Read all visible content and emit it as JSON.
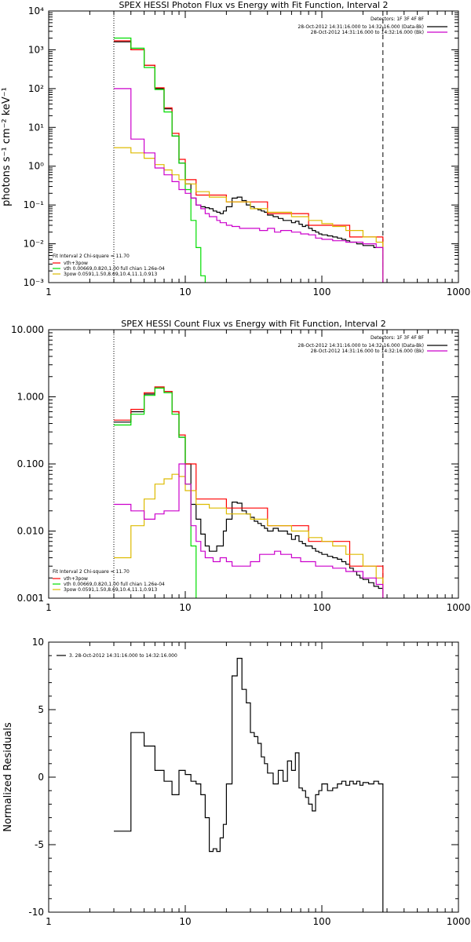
{
  "chart_data": [
    {
      "type": "line",
      "title": "SPEX HESSI Photon Flux vs Energy with Fit Function, Interval 2",
      "ylabel": "photons s⁻¹ cm⁻² keV⁻¹",
      "xlabel": "",
      "xscale": "log",
      "yscale": "log",
      "xlim": [
        1,
        1000
      ],
      "ylim": [
        0.001,
        10000
      ],
      "x_ticks": [
        "1",
        "10",
        "100",
        "1000"
      ],
      "y_ticks": [
        "10⁻³",
        "10⁻²",
        "10⁻¹",
        "10⁰",
        "10¹",
        "10²",
        "10³",
        "10⁴"
      ],
      "y_tick_values": [
        0.001,
        0.01,
        0.1,
        1,
        10,
        100,
        1000,
        10000
      ],
      "vlines": [
        {
          "x": 3,
          "style": "dotted",
          "color": "#000000"
        },
        {
          "x": 280,
          "style": "dashed",
          "color": "#000000"
        }
      ],
      "legend_top_right": {
        "header": "Detectors: 1F 3F 4F 8F",
        "entries": [
          {
            "label": "28-Oct-2012 14:31:16.000 to 14:32:16.000 (Data-Bk)",
            "color": "#000000"
          },
          {
            "label": "28-Oct-2012 14:31:16.000 to 14:32:16.000 (Bk)",
            "color": "#cc00cc"
          }
        ]
      },
      "legend_bottom_left": {
        "header": "Fit Interval 2   Chi-square = 11.70",
        "entries": [
          {
            "label": "vth+3pow",
            "color": "#ff0000"
          },
          {
            "label": "vth 0.00669,0.820,1.00  full chian 1.26e-04",
            "color": "#00dd00"
          },
          {
            "label": "3pow 0.0591,1.50,8.69,10.4,11.1,0.913",
            "color": "#ddbb00"
          }
        ]
      },
      "series": [
        {
          "color": "#000000",
          "x": [
            3,
            4,
            5,
            6,
            7,
            8,
            9,
            10,
            11,
            12,
            13,
            14,
            15,
            16,
            17,
            18,
            19,
            20,
            22,
            24,
            26,
            28,
            30,
            32,
            34,
            36,
            38,
            40,
            44,
            48,
            52,
            56,
            60,
            64,
            68,
            72,
            76,
            80,
            85,
            90,
            95,
            100,
            110,
            120,
            130,
            140,
            150,
            160,
            170,
            180,
            190,
            200,
            220,
            240,
            260,
            280
          ],
          "y": [
            1600,
            1000,
            400,
            100,
            30,
            6,
            1.2,
            0.35,
            0.15,
            0.1,
            0.09,
            0.085,
            0.08,
            0.07,
            0.065,
            0.06,
            0.07,
            0.09,
            0.15,
            0.16,
            0.13,
            0.1,
            0.09,
            0.08,
            0.075,
            0.07,
            0.065,
            0.055,
            0.05,
            0.045,
            0.04,
            0.04,
            0.035,
            0.038,
            0.032,
            0.028,
            0.03,
            0.025,
            0.022,
            0.02,
            0.018,
            0.017,
            0.016,
            0.015,
            0.014,
            0.013,
            0.012,
            0.011,
            0.011,
            0.01,
            0.01,
            0.009,
            0.009,
            0.008,
            0.008,
            0.001
          ]
        },
        {
          "color": "#ff0000",
          "x": [
            3,
            4,
            5,
            6,
            7,
            8,
            9,
            10,
            12,
            20,
            40,
            80,
            160,
            280
          ],
          "y": [
            1700,
            1000,
            400,
            105,
            32,
            7,
            1.5,
            0.45,
            0.18,
            0.12,
            0.06,
            0.03,
            0.015,
            0.008
          ]
        },
        {
          "color": "#00dd00",
          "x": [
            3,
            4,
            5,
            6,
            7,
            8,
            9,
            10,
            11,
            12,
            13,
            14
          ],
          "y": [
            2000,
            1100,
            350,
            95,
            25,
            6,
            1.2,
            0.25,
            0.04,
            0.008,
            0.0015,
            0.001
          ]
        },
        {
          "color": "#ddbb00",
          "x": [
            3,
            4,
            5,
            6,
            7,
            8,
            9,
            10,
            12,
            15,
            20,
            30,
            40,
            60,
            80,
            100,
            120,
            150,
            200,
            250,
            280
          ],
          "y": [
            3,
            2.2,
            1.6,
            1.1,
            0.8,
            0.6,
            0.45,
            0.35,
            0.22,
            0.16,
            0.12,
            0.08,
            0.065,
            0.05,
            0.04,
            0.033,
            0.028,
            0.022,
            0.015,
            0.011,
            0.001
          ]
        },
        {
          "color": "#cc00cc",
          "x": [
            3,
            4,
            5,
            6,
            7,
            8,
            9,
            10,
            11,
            12,
            13,
            14,
            15,
            16,
            17,
            18,
            20,
            22,
            25,
            30,
            35,
            40,
            45,
            50,
            60,
            70,
            80,
            90,
            100,
            120,
            150,
            200,
            250,
            280
          ],
          "y": [
            100,
            5,
            2.2,
            0.9,
            0.6,
            0.4,
            0.25,
            0.2,
            0.15,
            0.1,
            0.08,
            0.06,
            0.05,
            0.05,
            0.04,
            0.035,
            0.03,
            0.028,
            0.025,
            0.025,
            0.022,
            0.025,
            0.02,
            0.022,
            0.02,
            0.018,
            0.017,
            0.014,
            0.013,
            0.012,
            0.011,
            0.01,
            0.008,
            0.001
          ]
        }
      ]
    },
    {
      "type": "line",
      "title": "SPEX HESSI Count Flux vs Energy with Fit Function, Interval 2",
      "xlabel": "",
      "ylabel": "",
      "xscale": "log",
      "yscale": "log",
      "xlim": [
        1,
        1000
      ],
      "ylim": [
        0.001,
        10
      ],
      "x_ticks": [
        "1",
        "10",
        "100",
        "1000"
      ],
      "y_ticks": [
        "0.001",
        "0.010",
        "0.100",
        "1.000",
        "10.000"
      ],
      "y_tick_values": [
        0.001,
        0.01,
        0.1,
        1,
        10
      ],
      "vlines": [
        {
          "x": 3,
          "style": "dotted",
          "color": "#000000"
        },
        {
          "x": 280,
          "style": "dashed",
          "color": "#000000"
        }
      ],
      "legend_top_right": {
        "header": "Detectors: 1F 3F 4F 8F",
        "entries": [
          {
            "label": "28-Oct-2012 14:31:16.000 to 14:32:16.000 (Data-Bk)",
            "color": "#000000"
          },
          {
            "label": "28-Oct-2012 14:31:16.000 to 14:32:16.000 (Bk)",
            "color": "#cc00cc"
          }
        ]
      },
      "legend_bottom_left": {
        "header": "Fit Interval 2   Chi-square = 11.70",
        "entries": [
          {
            "label": "vth+3pow",
            "color": "#ff0000"
          },
          {
            "label": "vth 0.00669,0.820,1.00  full chian 1.26e-04",
            "color": "#00dd00"
          },
          {
            "label": "3pow 0.0591,1.50,8.69,10.4,11.1,0.913",
            "color": "#ddbb00"
          }
        ]
      },
      "series": [
        {
          "color": "#000000",
          "x": [
            3,
            4,
            5,
            6,
            7,
            8,
            9,
            10,
            11,
            12,
            13,
            14,
            15,
            16,
            17,
            18,
            19,
            20,
            22,
            24,
            26,
            28,
            30,
            32,
            34,
            36,
            38,
            40,
            44,
            48,
            52,
            56,
            60,
            64,
            68,
            72,
            76,
            80,
            85,
            90,
            95,
            100,
            110,
            120,
            130,
            140,
            150,
            160,
            170,
            180,
            190,
            200,
            220,
            240,
            260,
            280
          ],
          "y": [
            0.42,
            0.6,
            1.1,
            1.4,
            1.2,
            0.6,
            0.25,
            0.1,
            0.025,
            0.015,
            0.009,
            0.006,
            0.005,
            0.005,
            0.006,
            0.006,
            0.01,
            0.015,
            0.027,
            0.026,
            0.02,
            0.018,
            0.016,
            0.014,
            0.013,
            0.012,
            0.011,
            0.01,
            0.011,
            0.01,
            0.01,
            0.009,
            0.0075,
            0.0085,
            0.007,
            0.0065,
            0.006,
            0.006,
            0.0055,
            0.005,
            0.0048,
            0.0045,
            0.0042,
            0.004,
            0.0038,
            0.0035,
            0.0032,
            0.0028,
            0.0025,
            0.0022,
            0.002,
            0.0019,
            0.0017,
            0.0015,
            0.0014,
            0.001
          ]
        },
        {
          "color": "#ff0000",
          "x": [
            3,
            4,
            5,
            6,
            7,
            8,
            9,
            10,
            12,
            20,
            40,
            80,
            160,
            280
          ],
          "y": [
            0.45,
            0.65,
            1.15,
            1.4,
            1.2,
            0.6,
            0.27,
            0.1,
            0.03,
            0.022,
            0.012,
            0.007,
            0.003,
            0.0014
          ]
        },
        {
          "color": "#00dd00",
          "x": [
            3,
            4,
            5,
            6,
            7,
            8,
            9,
            10,
            11,
            12
          ],
          "y": [
            0.38,
            0.55,
            1.05,
            1.35,
            1.15,
            0.55,
            0.25,
            0.05,
            0.006,
            0.001
          ]
        },
        {
          "color": "#ddbb00",
          "x": [
            3,
            4,
            5,
            6,
            7,
            8,
            9,
            10,
            12,
            15,
            20,
            30,
            40,
            60,
            80,
            100,
            120,
            150,
            200,
            250,
            280
          ],
          "y": [
            0.004,
            0.012,
            0.03,
            0.05,
            0.06,
            0.07,
            0.065,
            0.04,
            0.025,
            0.022,
            0.018,
            0.015,
            0.012,
            0.01,
            0.008,
            0.007,
            0.006,
            0.0045,
            0.003,
            0.002,
            0.001
          ]
        },
        {
          "color": "#cc00cc",
          "x": [
            3,
            4,
            5,
            6,
            7,
            8,
            9,
            10,
            11,
            12,
            13,
            14,
            15,
            16,
            17,
            18,
            20,
            22,
            25,
            30,
            35,
            40,
            45,
            50,
            60,
            70,
            80,
            90,
            100,
            120,
            150,
            200,
            250,
            280
          ],
          "y": [
            0.025,
            0.02,
            0.015,
            0.018,
            0.02,
            0.02,
            0.1,
            0.05,
            0.012,
            0.007,
            0.005,
            0.004,
            0.004,
            0.0035,
            0.0035,
            0.004,
            0.0035,
            0.003,
            0.003,
            0.0035,
            0.0045,
            0.0045,
            0.005,
            0.0045,
            0.004,
            0.0035,
            0.0035,
            0.003,
            0.003,
            0.0028,
            0.0025,
            0.002,
            0.0016,
            0.001
          ]
        }
      ]
    },
    {
      "type": "line",
      "title": "",
      "ylabel": "Normalized Residuals",
      "xlabel": "",
      "xscale": "log",
      "yscale": "linear",
      "xlim": [
        1,
        1000
      ],
      "ylim": [
        -10,
        10
      ],
      "x_ticks": [
        "1",
        "10",
        "100",
        "1000"
      ],
      "y_ticks": [
        "-10",
        "-5",
        "0",
        "5",
        "10"
      ],
      "y_tick_values": [
        -10,
        -5,
        0,
        5,
        10
      ],
      "legend_top_left": {
        "entries": [
          {
            "label": "3. 28-Oct-2012 14:31:16.000 to 14:32:16.000",
            "color": "#000000"
          }
        ]
      },
      "series": [
        {
          "color": "#000000",
          "x": [
            3,
            4,
            5,
            6,
            7,
            8,
            9,
            10,
            11,
            12,
            13,
            14,
            15,
            16,
            17,
            18,
            19,
            20,
            22,
            24,
            26,
            28,
            30,
            32,
            34,
            36,
            38,
            40,
            44,
            48,
            52,
            56,
            60,
            64,
            68,
            72,
            76,
            80,
            85,
            90,
            95,
            100,
            110,
            120,
            130,
            140,
            150,
            160,
            170,
            180,
            190,
            200,
            220,
            240,
            260,
            280
          ],
          "y": [
            -4,
            3.3,
            2.3,
            0.5,
            -0.3,
            -1.3,
            0.5,
            0.2,
            -0.3,
            -0.5,
            -1.3,
            -3,
            -5.5,
            -5.3,
            -5.5,
            -4.5,
            -3.5,
            -0.5,
            7.5,
            8.8,
            6.5,
            5.5,
            3.3,
            3.0,
            2.5,
            1.5,
            1.0,
            0.3,
            -0.5,
            0.5,
            -0.3,
            1.2,
            0.5,
            1.8,
            -0.8,
            -1.0,
            -1.5,
            -2.0,
            -2.5,
            -1.3,
            -1.0,
            -0.5,
            -1.0,
            -0.8,
            -0.5,
            -0.3,
            -0.6,
            -0.3,
            -0.5,
            -0.3,
            -0.6,
            -0.4,
            -0.5,
            -0.3,
            -0.5,
            -10
          ]
        }
      ]
    }
  ]
}
